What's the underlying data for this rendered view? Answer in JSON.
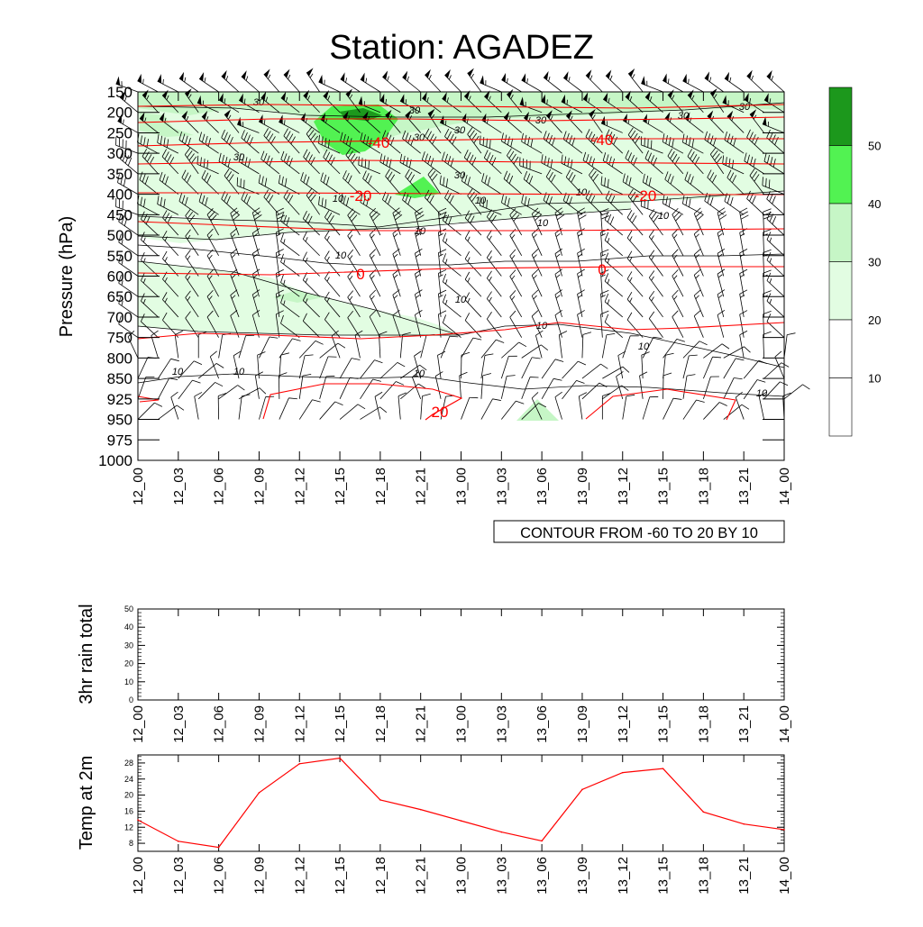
{
  "title": "Station: AGADEZ",
  "chart_data": [
    {
      "type": "heatmap",
      "ylabel": "Pressure (hPa)",
      "y_reversed": true,
      "y_ticks": [
        150,
        200,
        250,
        300,
        350,
        400,
        450,
        500,
        550,
        600,
        650,
        700,
        750,
        800,
        850,
        925,
        950,
        975,
        1000
      ],
      "x_ticks": [
        "12_00",
        "12_03",
        "12_06",
        "12_09",
        "12_12",
        "12_15",
        "12_18",
        "12_21",
        "13_00",
        "13_03",
        "13_06",
        "13_09",
        "13_12",
        "13_15",
        "13_18",
        "13_21",
        "14_00"
      ],
      "fill_colors": [
        "#ffffff",
        "#ffffff",
        "#e2fde2",
        "#c6f6c6",
        "#52f252",
        "#1c981c"
      ],
      "fill_colors_note": "",
      "colorbar_labels": [
        "10",
        "20",
        "30",
        "40",
        "50"
      ],
      "temperature_contour_color": "#ff0000",
      "temperature_contour_labels": [
        "-40",
        "-40",
        "-20",
        "-20",
        "0",
        "0",
        "20"
      ],
      "humidity_contour_labels": [
        "30",
        "30",
        "30",
        "30",
        "30",
        "30",
        "30",
        "30",
        "30",
        "10",
        "10",
        "10",
        "10",
        "10",
        "10",
        "10",
        "10",
        "10",
        "10",
        "10"
      ],
      "annotation": "CONTOUR FROM -60 TO 20 BY 10",
      "wind_barbs": true
    },
    {
      "type": "line",
      "ylabel": "3hr rain total",
      "ylim": [
        0,
        50
      ],
      "y_ticks": [
        0,
        10,
        20,
        30,
        40,
        50
      ],
      "x_ticks": [
        "12_00",
        "12_03",
        "12_06",
        "12_09",
        "12_12",
        "12_15",
        "12_18",
        "12_21",
        "13_00",
        "13_03",
        "13_06",
        "13_09",
        "13_12",
        "13_15",
        "13_18",
        "13_21",
        "14_00"
      ],
      "values": [
        0,
        0,
        0,
        0,
        0,
        0,
        0,
        0,
        0,
        0,
        0,
        0,
        0,
        0,
        0,
        0,
        0
      ]
    },
    {
      "type": "line",
      "ylabel": "Temp at 2m",
      "ylim": [
        6,
        30
      ],
      "y_ticks": [
        8,
        12,
        16,
        20,
        24,
        28
      ],
      "x_ticks": [
        "12_00",
        "12_03",
        "12_06",
        "12_09",
        "12_12",
        "12_15",
        "12_18",
        "12_21",
        "13_00",
        "13_03",
        "13_06",
        "13_09",
        "13_12",
        "13_15",
        "13_18",
        "13_21",
        "14_00"
      ],
      "line_color": "#ff0000",
      "values": [
        13.8,
        8.5,
        7.0,
        20.6,
        27.8,
        29.2,
        18.8,
        16.4,
        13.6,
        10.8,
        8.6,
        21.4,
        25.6,
        26.6,
        15.8,
        12.8,
        11.4
      ]
    }
  ]
}
